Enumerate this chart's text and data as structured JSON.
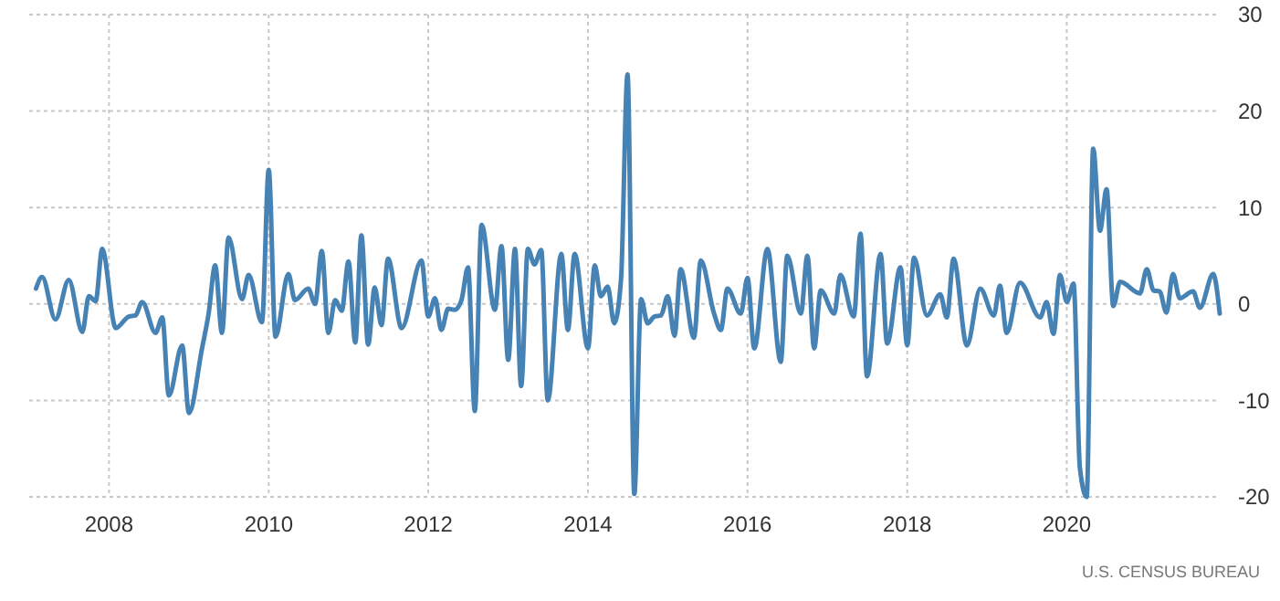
{
  "chart_data": {
    "type": "line",
    "x": [
      "2007-02",
      "2007-03",
      "2007-05",
      "2007-07",
      "2007-09",
      "2007-10",
      "2007-11",
      "2007-12",
      "2008-02",
      "2008-04",
      "2008-05",
      "2008-06",
      "2008-08",
      "2008-09",
      "2008-10",
      "2008-12",
      "2009-01",
      "2009-03",
      "2009-04",
      "2009-05",
      "2009-06",
      "2009-07",
      "2009-09",
      "2009-10",
      "2009-12",
      "2010-01",
      "2010-02",
      "2010-04",
      "2010-05",
      "2010-07",
      "2010-08",
      "2010-09",
      "2010-10",
      "2010-11",
      "2010-12",
      "2011-01",
      "2011-02",
      "2011-03",
      "2011-04",
      "2011-05",
      "2011-06",
      "2011-07",
      "2011-09",
      "2011-12",
      "2012-01",
      "2012-02",
      "2012-03",
      "2012-04",
      "2012-05",
      "2012-06",
      "2012-07",
      "2012-08",
      "2012-09",
      "2012-11",
      "2012-12",
      "2013-01",
      "2013-02",
      "2013-03",
      "2013-04",
      "2013-05",
      "2013-06",
      "2013-07",
      "2013-09",
      "2013-10",
      "2013-11",
      "2014-01",
      "2014-02",
      "2014-03",
      "2014-04",
      "2014-05",
      "2014-06",
      "2014-07",
      "2014-08",
      "2014-09",
      "2014-10",
      "2014-11",
      "2014-12",
      "2015-01",
      "2015-02",
      "2015-03",
      "2015-05",
      "2015-06",
      "2015-08",
      "2015-09",
      "2015-10",
      "2015-12",
      "2016-01",
      "2016-02",
      "2016-04",
      "2016-06",
      "2016-07",
      "2016-09",
      "2016-10",
      "2016-11",
      "2016-12",
      "2017-02",
      "2017-03",
      "2017-05",
      "2017-06",
      "2017-07",
      "2017-09",
      "2017-10",
      "2017-12",
      "2018-01",
      "2018-02",
      "2018-04",
      "2018-06",
      "2018-07",
      "2018-08",
      "2018-10",
      "2018-12",
      "2019-02",
      "2019-03",
      "2019-04",
      "2019-06",
      "2019-09",
      "2019-10",
      "2019-11",
      "2019-12",
      "2020-01",
      "2020-02",
      "2020-03",
      "2020-04",
      "2020-05",
      "2020-06",
      "2020-07",
      "2020-08",
      "2020-09",
      "2020-12",
      "2021-01",
      "2021-02",
      "2021-03",
      "2021-04",
      "2021-05",
      "2021-06",
      "2021-08",
      "2021-09",
      "2021-11",
      "2021-12"
    ],
    "series": [
      {
        "color": "#4682b4",
        "values": [
          1.6,
          2.8,
          -1.6,
          2.5,
          -2.9,
          0.8,
          0.3,
          5.7,
          -2.5,
          -1.3,
          -1.2,
          0.2,
          -3.0,
          -1.4,
          -9.5,
          -4.3,
          -11.3,
          -4.7,
          -1.0,
          4.0,
          -3.0,
          6.9,
          0.5,
          3.0,
          -1.9,
          13.9,
          -3.4,
          3.1,
          0.4,
          1.6,
          0,
          5.5,
          -3.0,
          0.4,
          -0.7,
          4.4,
          -4.0,
          7.1,
          -4.2,
          1.7,
          -2.2,
          4.7,
          -2.5,
          4.5,
          -1.3,
          0.6,
          -2.7,
          -0.5,
          -0.6,
          0.4,
          3.8,
          -11.1,
          8.2,
          -0.6,
          6.0,
          -5.8,
          5.7,
          -8.5,
          5.7,
          4.1,
          5.6,
          -10.0,
          5.2,
          -2.7,
          5.2,
          -4.6,
          4.0,
          0.8,
          1.8,
          -2.0,
          2.5,
          23.8,
          -19.7,
          0.5,
          -2.0,
          -1.3,
          -1.2,
          0.8,
          -3.3,
          3.6,
          -3.5,
          4.5,
          -1.0,
          -2.7,
          1.6,
          -1.0,
          2.7,
          -4.6,
          5.7,
          -6.0,
          5.0,
          -1.0,
          5.0,
          -4.6,
          1.4,
          -1.0,
          3.0,
          -1.3,
          7.3,
          -7.5,
          5.2,
          -4.1,
          3.8,
          -4.3,
          4.8,
          -1.2,
          1.0,
          -1.4,
          4.7,
          -4.3,
          1.6,
          -1.2,
          1.9,
          -3.0,
          2.2,
          -1.4,
          0.2,
          -3.1,
          3.0,
          0.2,
          2.1,
          -17,
          -20,
          16.1,
          7.6,
          11.9,
          -0.2,
          2.3,
          1.1,
          3.6,
          1.4,
          1.3,
          -0.9,
          3.1,
          0.6,
          1.3,
          -0.4,
          3.1,
          -1.0
        ]
      }
    ],
    "xlim": [
      "2007-01",
      "2021-12"
    ],
    "xticks": [
      "2008",
      "2010",
      "2012",
      "2014",
      "2016",
      "2018",
      "2020"
    ],
    "ylim": [
      -20,
      30
    ],
    "yticks": [
      -20,
      -10,
      0,
      10,
      20,
      30
    ],
    "grid": true,
    "line_style": "solid",
    "marker": "none",
    "annotations": [
      "U.S. CENSUS BUREAU"
    ]
  }
}
